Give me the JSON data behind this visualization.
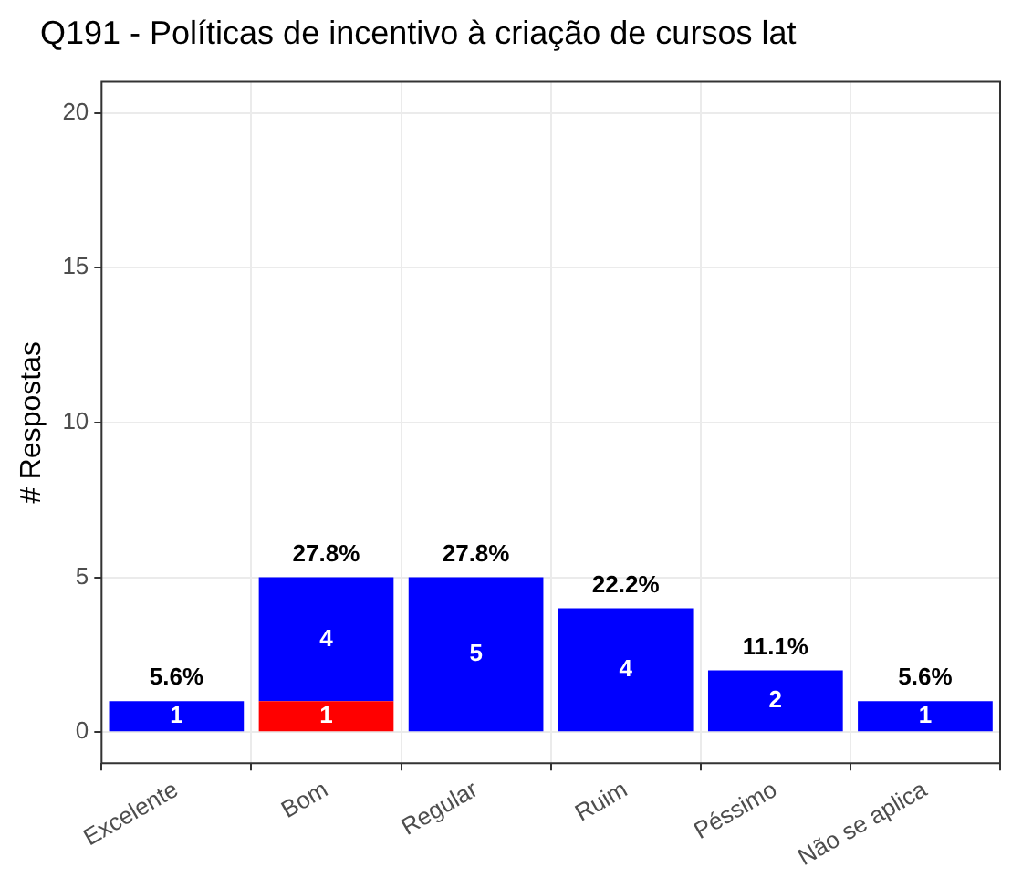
{
  "chart_data": {
    "type": "bar",
    "title": "Q191 - Políticas de incentivo à criação de cursos lat",
    "ylabel": "# Respostas",
    "categories": [
      "Excelente",
      "Bom",
      "Regular",
      "Ruim",
      "Péssimo",
      "Não se aplica"
    ],
    "stacked": true,
    "series": [
      {
        "color": "#ff0000",
        "values": [
          null,
          1,
          null,
          null,
          null,
          null
        ]
      },
      {
        "color": "#0000ff",
        "values": [
          1,
          4,
          5,
          4,
          2,
          1
        ]
      }
    ],
    "annotations": [
      {
        "text": "5.6%",
        "x": "Excelente",
        "y": 1
      },
      {
        "text": "27.8%",
        "x": "Bom",
        "y": 5
      },
      {
        "text": "27.8%",
        "x": "Regular",
        "y": 5
      },
      {
        "text": "22.2%",
        "x": "Ruim",
        "y": 4
      },
      {
        "text": "11.1%",
        "x": "Péssimo",
        "y": 2
      },
      {
        "text": "5.6%",
        "x": "Não se aplica",
        "y": 1
      }
    ],
    "data_labels": true,
    "ylim": [
      -1,
      21
    ],
    "yticks": [
      0,
      5,
      10,
      15,
      20
    ],
    "grid": true,
    "legend": false
  }
}
